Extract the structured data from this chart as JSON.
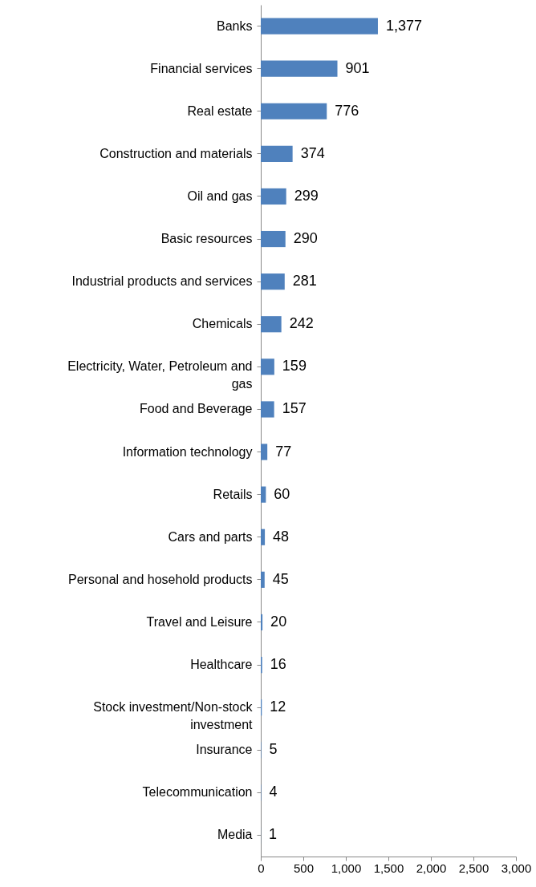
{
  "chart_data": {
    "type": "bar",
    "orientation": "horizontal",
    "categories": [
      "Banks",
      "Financial services",
      "Real estate",
      "Construction and materials",
      "Oil and gas",
      "Basic resources",
      "Industrial products and services",
      "Chemicals",
      "Electricity, Water, Petroleum and gas",
      "Food and Beverage",
      "Information technology",
      "Retails",
      "Cars and parts",
      "Personal and hosehold products",
      "Travel and Leisure",
      "Healthcare",
      "Stock investment/Non-stock investment",
      "Insurance",
      "Telecommunication",
      "Media"
    ],
    "values": [
      1377,
      901,
      776,
      374,
      299,
      290,
      281,
      242,
      159,
      157,
      77,
      60,
      48,
      45,
      20,
      16,
      12,
      5,
      4,
      1
    ],
    "value_labels": [
      "1,377",
      "901",
      "776",
      "374",
      "299",
      "290",
      "281",
      "242",
      "159",
      "157",
      "77",
      "60",
      "48",
      "45",
      "20",
      "16",
      "12",
      "5",
      "4",
      "1"
    ],
    "color": "#4f81bd",
    "xlim": [
      0,
      3000
    ],
    "xticks": [
      0,
      500,
      {
        "value": 1000,
        "label": "1,000"
      },
      {
        "value": 1500,
        "label": "1,500"
      },
      {
        "value": 2000,
        "label": "2,000"
      },
      {
        "value": 2500,
        "label": "2,500"
      },
      {
        "value": 3000,
        "label": "3,000"
      }
    ],
    "grid": false
  }
}
